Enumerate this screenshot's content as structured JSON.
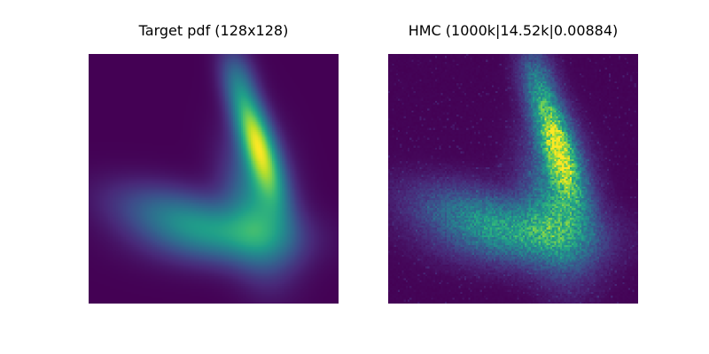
{
  "chart_data": [
    {
      "type": "heatmap",
      "title": "Target pdf (128x128)",
      "xlabel": "",
      "ylabel": "",
      "grid": false,
      "axes_visible": false,
      "colormap": "viridis",
      "resolution": [
        128,
        128
      ],
      "noisy": false
    },
    {
      "type": "heatmap",
      "title": "HMC (1000k|14.52k|0.00884)",
      "xlabel": "",
      "ylabel": "",
      "grid": false,
      "axes_visible": false,
      "colormap": "viridis",
      "resolution": [
        128,
        128
      ],
      "noisy": true
    }
  ]
}
